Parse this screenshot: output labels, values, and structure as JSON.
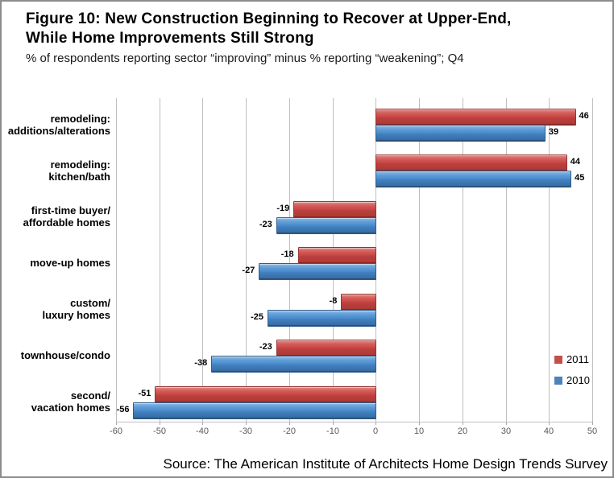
{
  "window": {
    "background": "#ffffff",
    "border_color": "#8c8c8c"
  },
  "header": {
    "title": "Figure 10: New Construction Beginning to Recover at Upper-End,\nWhile Home Improvements Still Strong",
    "subtitle": "% of respondents reporting sector “improving” minus % reporting “weakening”; Q4"
  },
  "footer": {
    "source": "Source: The American Institute of Architects Home Design Trends Survey"
  },
  "chart_data": {
    "type": "bar",
    "orientation": "horizontal",
    "title": "",
    "categories": [
      "remodeling:\nadditions/alterations",
      "remodeling:\nkitchen/bath",
      "first-time buyer/\naffordable homes",
      "move-up homes",
      "custom/\nluxury homes",
      "townhouse/condo",
      "second/\nvacation homes"
    ],
    "series": [
      {
        "name": "2011",
        "color": "#c0504d",
        "values": [
          46,
          44,
          -19,
          -18,
          -8,
          -23,
          -51
        ]
      },
      {
        "name": "2010",
        "color": "#4f81bd",
        "values": [
          39,
          45,
          -23,
          -27,
          -25,
          -38,
          -56
        ]
      }
    ],
    "xlim": [
      -60,
      50
    ],
    "xticks": [
      -60,
      -50,
      -40,
      -30,
      -20,
      -10,
      0,
      10,
      20,
      30,
      40,
      50
    ],
    "grid": true,
    "gridline_color": "#bfbfbf",
    "tick_label_color": "#595959",
    "data_labels": true,
    "legend_position": "right"
  }
}
